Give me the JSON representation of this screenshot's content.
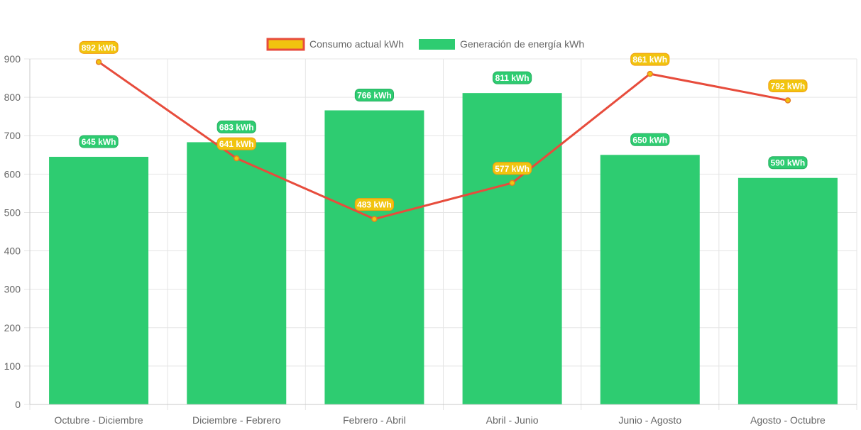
{
  "chart_data": {
    "type": "bar",
    "categories": [
      "Octubre - Diciembre",
      "Diciembre - Febrero",
      "Febrero - Abril",
      "Abril - Junio",
      "Junio - Agosto",
      "Agosto - Octubre"
    ],
    "ylim": [
      0,
      900
    ],
    "yticks": [
      "0",
      "100",
      "200",
      "300",
      "400",
      "500",
      "600",
      "700",
      "800",
      "900"
    ],
    "grid": true,
    "legend_position": "top-center",
    "series": [
      {
        "name": "Consumo actual kWh",
        "kind": "line",
        "values": [
          892,
          641,
          483,
          577,
          861,
          792
        ],
        "labels": [
          "892 kWh",
          "641 kWh",
          "483 kWh",
          "577 kWh",
          "861 kWh",
          "792 kWh"
        ],
        "line_color": "#e74c3c",
        "fill_color": "#f1c40f",
        "label_bg": "#f1c40f",
        "label_border": "#f39c12"
      },
      {
        "name": "Generación de energía kWh",
        "kind": "bar",
        "values": [
          645,
          683,
          766,
          811,
          650,
          590
        ],
        "labels": [
          "645 kWh",
          "683 kWh",
          "766 kWh",
          "811 kWh",
          "650 kWh",
          "590 kWh"
        ],
        "bar_color": "#2ecc71",
        "label_bg": "#2ecc71",
        "label_border": "#27ae60"
      }
    ]
  }
}
